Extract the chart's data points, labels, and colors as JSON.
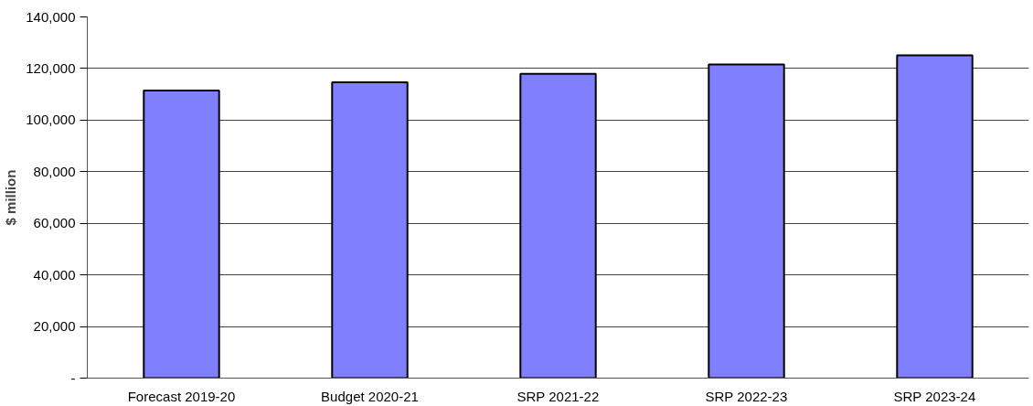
{
  "chart_data": {
    "type": "bar",
    "ylabel": "$ million",
    "categories": [
      "Forecast 2019-20",
      "Budget 2020-21",
      "SRP 2021-22",
      "SRP 2022-23",
      "SRP 2023-24"
    ],
    "values": [
      111500,
      114700,
      117900,
      121600,
      125100
    ],
    "color": "#8080ff",
    "ylim": [
      0,
      140000
    ],
    "yticks": [
      {
        "value": 0,
        "label": "-"
      },
      {
        "value": 20000,
        "label": "20,000"
      },
      {
        "value": 40000,
        "label": "40,000"
      },
      {
        "value": 60000,
        "label": "60,000"
      },
      {
        "value": 80000,
        "label": "80,000"
      },
      {
        "value": 100000,
        "label": "100,000"
      },
      {
        "value": 120000,
        "label": "120,000"
      },
      {
        "value": 140000,
        "label": "140,000"
      }
    ],
    "grid": "y"
  }
}
